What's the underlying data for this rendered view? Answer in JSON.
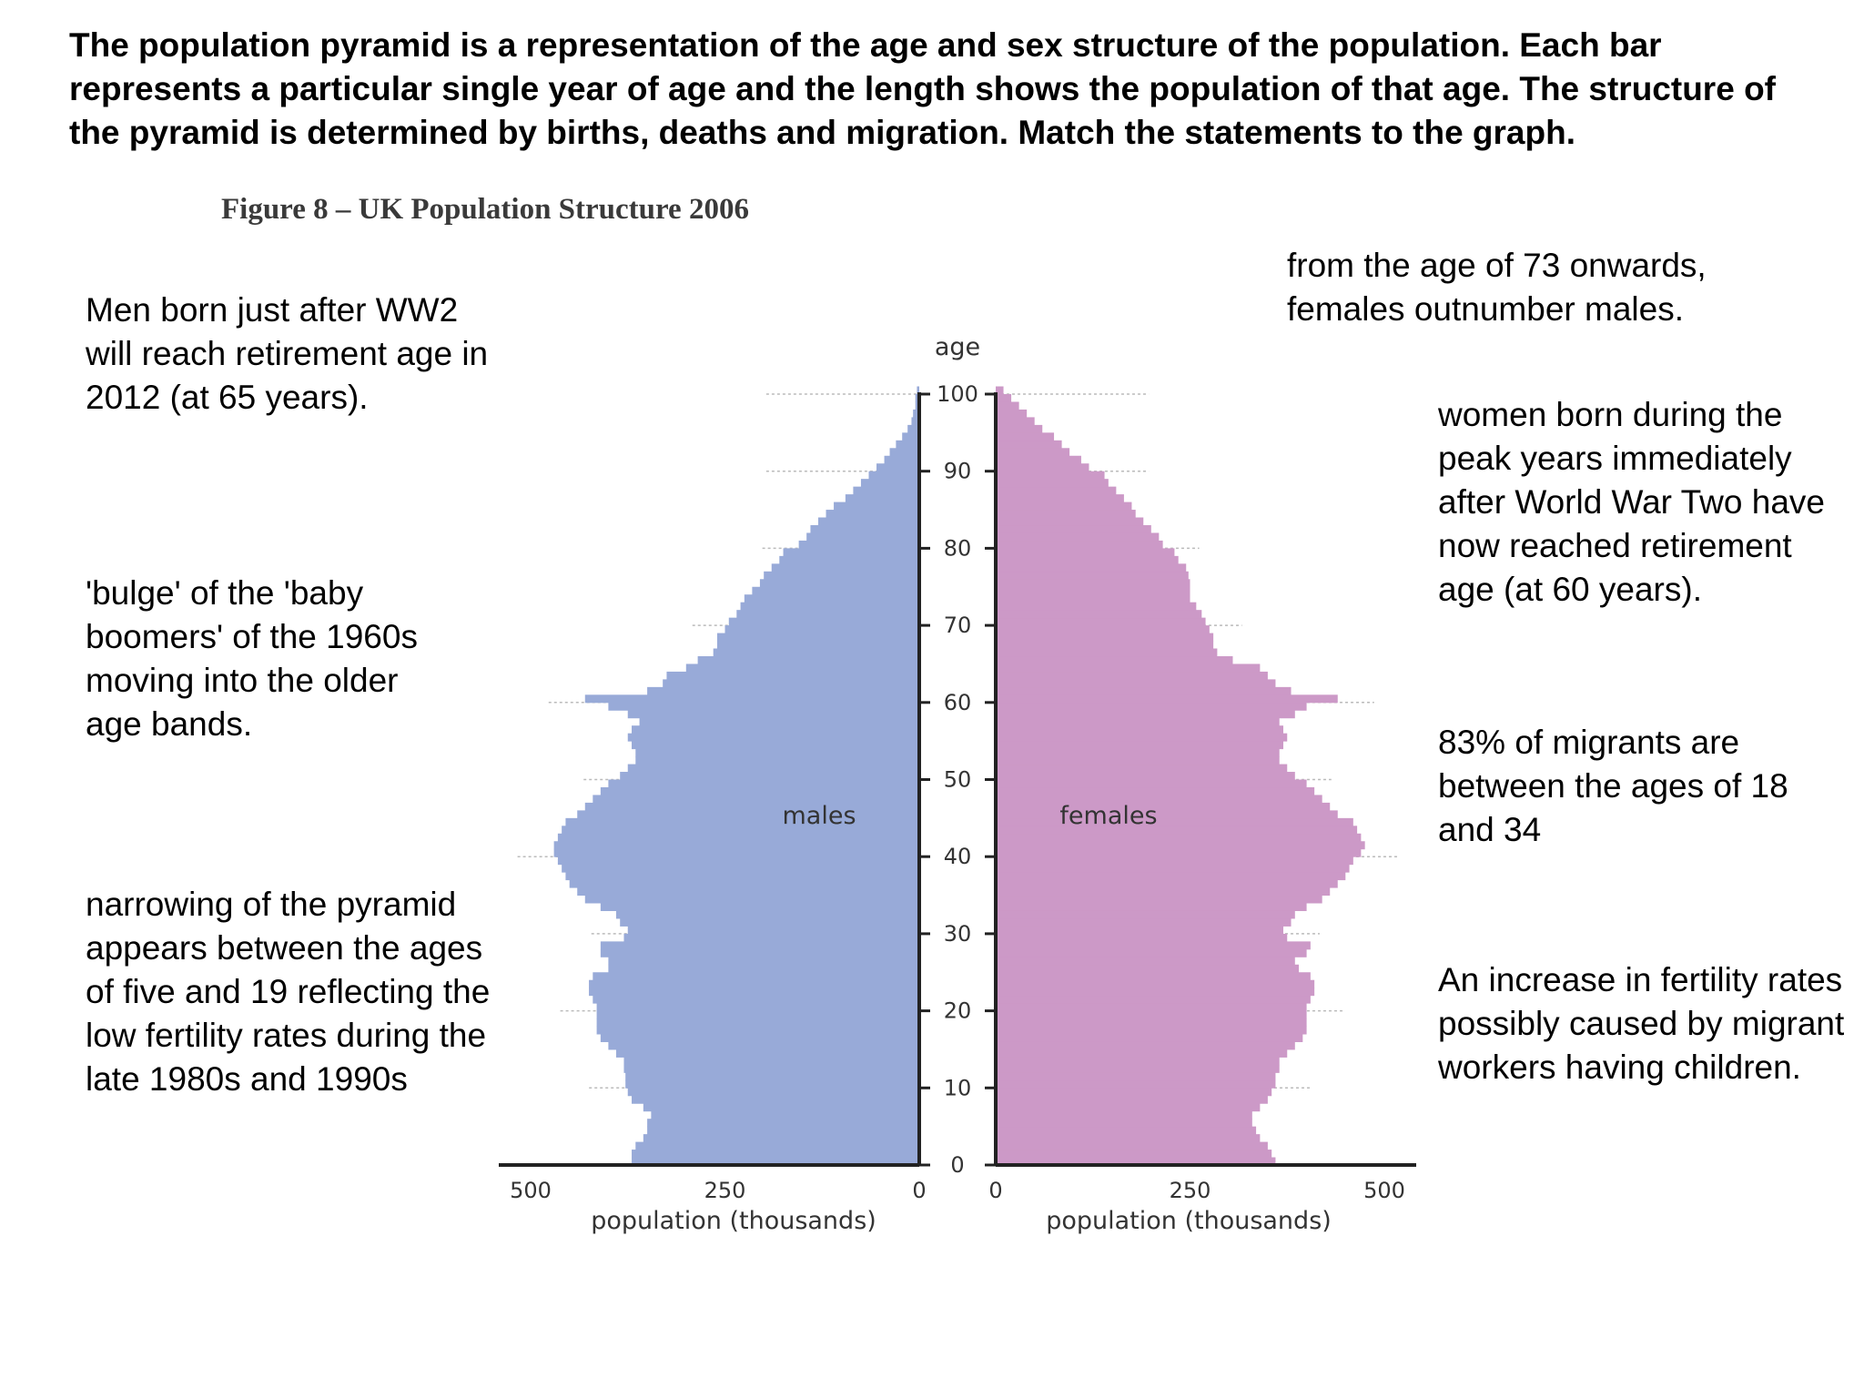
{
  "intro": "The population pyramid is a representation of the age and sex structure of the population. Each bar represents a particular single year of age and the length shows the population of that age. The structure of the pyramid is determined by births, deaths and migration. Match the statements to the graph.",
  "statements": {
    "men_ww2": "Men born just after WW2 will reach retirement age in 2012 (at 65 years).",
    "bulge": "'bulge' of the 'baby boomers' of the 1960s moving into the older age bands.",
    "narrowing": "narrowing of the pyramid appears between the ages of five and 19 reflecting the low fertility rates during the late 1980s and 1990s",
    "females_73": "from the age of 73 onwards, females outnumber males.",
    "women_ww2": "women born during the peak years immediately after World War Two have now reached retirement age (at 60 years).",
    "migrants": "83% of migrants are between the ages of 18 and 34",
    "fertility": "An increase in fertility rates possibly caused by migrant workers having children."
  },
  "chart_data": {
    "type": "bar",
    "title": "Figure 8 – UK Population Structure 2006",
    "age_axis_label": "age",
    "age_ticks": [
      "0",
      "10",
      "20",
      "30",
      "40",
      "50",
      "60",
      "70",
      "80",
      "90",
      "100"
    ],
    "age_range": [
      0,
      100
    ],
    "population_range": [
      0,
      500
    ],
    "population_ticks": [
      "0",
      "250",
      "500"
    ],
    "xlabel_left": "population (thousands)",
    "xlabel_right": "population (thousands)",
    "grid": true,
    "colors": {
      "males": "#98aad8",
      "females": "#cc99c7",
      "axis": "#222222",
      "grid": "#bbbbbb"
    },
    "series": [
      {
        "name": "males",
        "ages": [
          0,
          1,
          2,
          3,
          4,
          5,
          6,
          7,
          8,
          9,
          10,
          11,
          12,
          13,
          14,
          15,
          16,
          17,
          18,
          19,
          20,
          21,
          22,
          23,
          24,
          25,
          26,
          27,
          28,
          29,
          30,
          31,
          32,
          33,
          34,
          35,
          36,
          37,
          38,
          39,
          40,
          41,
          42,
          43,
          44,
          45,
          46,
          47,
          48,
          49,
          50,
          51,
          52,
          53,
          54,
          55,
          56,
          57,
          58,
          59,
          60,
          61,
          62,
          63,
          64,
          65,
          66,
          67,
          68,
          69,
          70,
          71,
          72,
          73,
          74,
          75,
          76,
          77,
          78,
          79,
          80,
          81,
          82,
          83,
          84,
          85,
          86,
          87,
          88,
          89,
          90,
          91,
          92,
          93,
          94,
          95,
          96,
          97,
          98,
          99,
          100
        ],
        "values": [
          370,
          370,
          365,
          355,
          350,
          350,
          345,
          355,
          370,
          375,
          378,
          378,
          380,
          380,
          390,
          400,
          410,
          415,
          415,
          415,
          415,
          420,
          425,
          425,
          420,
          400,
          400,
          410,
          410,
          380,
          375,
          385,
          390,
          410,
          430,
          440,
          450,
          455,
          460,
          465,
          470,
          470,
          465,
          460,
          455,
          440,
          430,
          420,
          410,
          400,
          385,
          375,
          365,
          365,
          370,
          375,
          370,
          360,
          375,
          400,
          430,
          350,
          330,
          325,
          300,
          285,
          265,
          260,
          260,
          250,
          245,
          235,
          230,
          225,
          215,
          205,
          200,
          190,
          180,
          175,
          155,
          145,
          140,
          130,
          120,
          110,
          95,
          85,
          75,
          65,
          55,
          45,
          38,
          30,
          22,
          15,
          10,
          8,
          5,
          5,
          3
        ]
      },
      {
        "name": "females",
        "ages": [
          0,
          1,
          2,
          3,
          4,
          5,
          6,
          7,
          8,
          9,
          10,
          11,
          12,
          13,
          14,
          15,
          16,
          17,
          18,
          19,
          20,
          21,
          22,
          23,
          24,
          25,
          26,
          27,
          28,
          29,
          30,
          31,
          32,
          33,
          34,
          35,
          36,
          37,
          38,
          39,
          40,
          41,
          42,
          43,
          44,
          45,
          46,
          47,
          48,
          49,
          50,
          51,
          52,
          53,
          54,
          55,
          56,
          57,
          58,
          59,
          60,
          61,
          62,
          63,
          64,
          65,
          66,
          67,
          68,
          69,
          70,
          71,
          72,
          73,
          74,
          75,
          76,
          77,
          78,
          79,
          80,
          81,
          82,
          83,
          84,
          85,
          86,
          87,
          88,
          89,
          90,
          91,
          92,
          93,
          94,
          95,
          96,
          97,
          98,
          99,
          100
        ],
        "values": [
          360,
          355,
          350,
          340,
          335,
          330,
          330,
          340,
          350,
          355,
          360,
          360,
          365,
          365,
          375,
          385,
          395,
          400,
          400,
          400,
          400,
          405,
          410,
          410,
          405,
          390,
          385,
          400,
          405,
          375,
          370,
          380,
          385,
          400,
          420,
          430,
          440,
          450,
          455,
          460,
          470,
          475,
          470,
          465,
          460,
          440,
          430,
          420,
          410,
          400,
          385,
          375,
          365,
          365,
          370,
          375,
          370,
          365,
          385,
          400,
          440,
          380,
          360,
          350,
          340,
          305,
          285,
          280,
          280,
          275,
          270,
          265,
          258,
          250,
          250,
          250,
          248,
          245,
          235,
          230,
          215,
          210,
          200,
          190,
          180,
          175,
          165,
          155,
          145,
          140,
          120,
          110,
          95,
          85,
          75,
          60,
          50,
          40,
          30,
          20,
          10
        ]
      }
    ],
    "annotations": [
      "males",
      "females"
    ]
  }
}
